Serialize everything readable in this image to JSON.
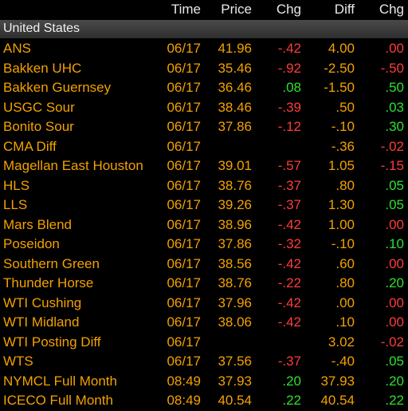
{
  "header": {
    "time": "Time",
    "price": "Price",
    "chg": "Chg",
    "diff": "Diff",
    "chg2": "Chg"
  },
  "region": "United States",
  "rows": [
    {
      "name": "ANS",
      "time": "06/17",
      "price": "41.96",
      "chg": "-.42",
      "diff": "4.00",
      "chg2": ".00"
    },
    {
      "name": "Bakken UHC",
      "time": "06/17",
      "price": "35.46",
      "chg": "-.92",
      "diff": "-2.50",
      "chg2": "-.50"
    },
    {
      "name": "Bakken Guernsey",
      "time": "06/17",
      "price": "36.46",
      "chg": ".08",
      "diff": "-1.50",
      "chg2": ".50"
    },
    {
      "name": "USGC Sour",
      "time": "06/17",
      "price": "38.46",
      "chg": "-.39",
      "diff": ".50",
      "chg2": ".03"
    },
    {
      "name": "Bonito Sour",
      "time": "06/17",
      "price": "37.86",
      "chg": "-.12",
      "diff": "-.10",
      "chg2": ".30"
    },
    {
      "name": "CMA Diff",
      "time": "06/17",
      "price": "",
      "chg": "",
      "diff": "-.36",
      "chg2": "-.02"
    },
    {
      "name": "Magellan East Houston",
      "time": "06/17",
      "price": "39.01",
      "chg": "-.57",
      "diff": "1.05",
      "chg2": "-.15"
    },
    {
      "name": "HLS",
      "time": "06/17",
      "price": "38.76",
      "chg": "-.37",
      "diff": ".80",
      "chg2": ".05"
    },
    {
      "name": "LLS",
      "time": "06/17",
      "price": "39.26",
      "chg": "-.37",
      "diff": "1.30",
      "chg2": ".05"
    },
    {
      "name": "Mars Blend",
      "time": "06/17",
      "price": "38.96",
      "chg": "-.42",
      "diff": "1.00",
      "chg2": ".00"
    },
    {
      "name": "Poseidon",
      "time": "06/17",
      "price": "37.86",
      "chg": "-.32",
      "diff": "-.10",
      "chg2": ".10"
    },
    {
      "name": "Southern Green",
      "time": "06/17",
      "price": "38.56",
      "chg": "-.42",
      "diff": ".60",
      "chg2": ".00"
    },
    {
      "name": "Thunder Horse",
      "time": "06/17",
      "price": "38.76",
      "chg": "-.22",
      "diff": ".80",
      "chg2": ".20"
    },
    {
      "name": "WTI Cushing",
      "time": "06/17",
      "price": "37.96",
      "chg": "-.42",
      "diff": ".00",
      "chg2": ".00"
    },
    {
      "name": "WTI Midland",
      "time": "06/17",
      "price": "38.06",
      "chg": "-.42",
      "diff": ".10",
      "chg2": ".00"
    },
    {
      "name": "WTI Posting Diff",
      "time": "06/17",
      "price": "",
      "chg": "",
      "diff": "3.02",
      "chg2": "-.02"
    },
    {
      "name": "WTS",
      "time": "06/17",
      "price": "37.56",
      "chg": "-.37",
      "diff": "-.40",
      "chg2": ".05"
    },
    {
      "name": "NYMCL Full Month",
      "time": "08:49",
      "price": "37.93",
      "chg": ".20",
      "diff": "37.93",
      "chg2": ".20"
    },
    {
      "name": "ICECO Full Month",
      "time": "08:49",
      "price": "40.54",
      "chg": ".22",
      "diff": "40.54",
      "chg2": ".22"
    }
  ],
  "colors": {
    "label": "#f3a100",
    "negative": "#ff3b3b",
    "positive": "#2ee02e",
    "header": "#e8e8e8"
  }
}
